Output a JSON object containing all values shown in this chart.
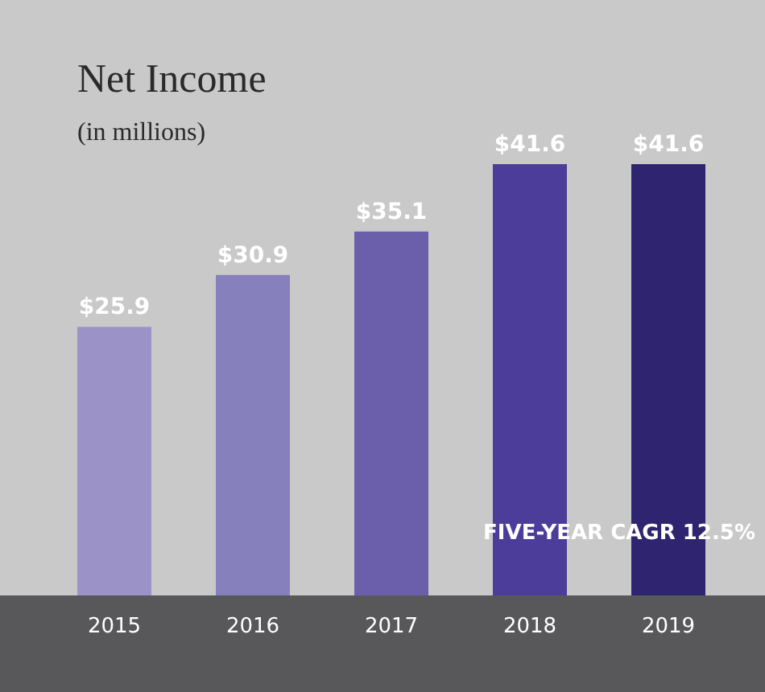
{
  "chart_data": {
    "type": "bar",
    "title": "Net Income",
    "subtitle": "(in millions)",
    "categories": [
      "2015",
      "2016",
      "2017",
      "2018",
      "2019"
    ],
    "values": [
      25.9,
      30.9,
      35.1,
      41.6,
      41.6
    ],
    "colors": [
      "#9b93c8",
      "#8680bd",
      "#6b5fab",
      "#4c3d9a",
      "#2e2470"
    ],
    "value_labels": [
      "$25.9",
      "$30.9",
      "$35.1",
      "$41.6",
      "$41.6"
    ],
    "annotations": [
      "FIVE-YEAR CAGR 12.5%"
    ],
    "grid": false,
    "legend": false
  }
}
